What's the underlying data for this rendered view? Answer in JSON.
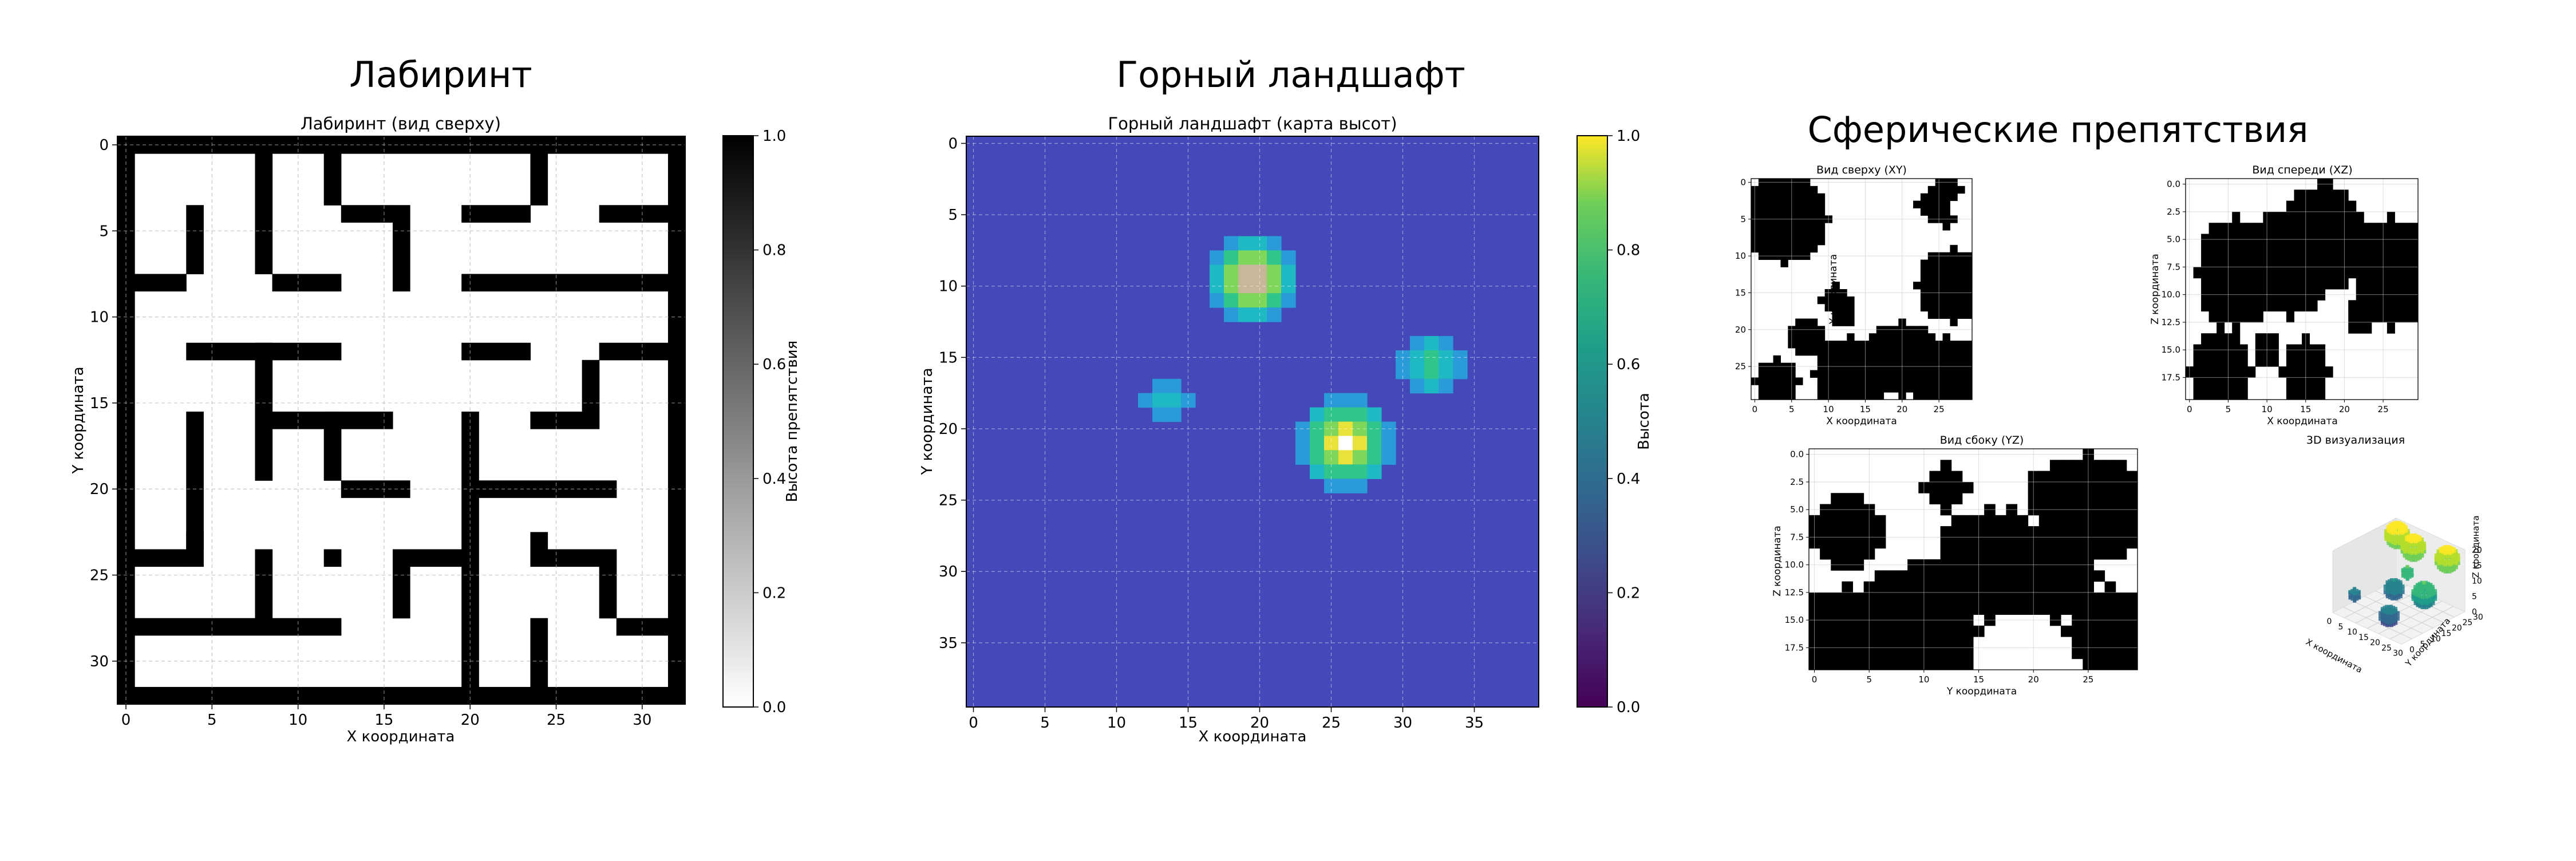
{
  "panels": {
    "maze": {
      "suptitle": "Лабиринт",
      "chart_data": {
        "type": "heatmap",
        "title": "Лабиринт (вид сверху)",
        "xlabel": "X координата",
        "ylabel": "Y координата",
        "xticks": [
          0,
          5,
          10,
          15,
          20,
          25,
          30
        ],
        "yticks": [
          0,
          5,
          10,
          15,
          20,
          25,
          30
        ],
        "xlim": [
          -0.5,
          32.5
        ],
        "ylim": [
          -0.5,
          32.5
        ],
        "colormap": "gray_r",
        "colorbar": {
          "label": "Высота препятствия",
          "ticks": [
            "0.0",
            "0.2",
            "0.4",
            "0.6",
            "0.8",
            "1.0"
          ]
        },
        "grid": true,
        "wall_cells": [
          [
            0,
            0,
            32,
            0
          ],
          [
            0,
            32,
            32,
            32
          ],
          [
            0,
            0,
            0,
            32
          ],
          [
            32,
            0,
            32,
            32
          ],
          [
            12,
            1,
            12,
            3
          ],
          [
            24,
            1,
            24,
            3
          ],
          [
            13,
            4,
            15,
            4
          ],
          [
            20,
            4,
            23,
            4
          ],
          [
            28,
            4,
            31,
            4
          ],
          [
            4,
            4,
            4,
            7
          ],
          [
            8,
            1,
            8,
            7
          ],
          [
            16,
            4,
            16,
            8
          ],
          [
            1,
            8,
            3,
            8
          ],
          [
            9,
            8,
            12,
            8
          ],
          [
            20,
            8,
            31,
            8
          ],
          [
            4,
            12,
            12,
            12
          ],
          [
            20,
            12,
            23,
            12
          ],
          [
            28,
            12,
            31,
            12
          ],
          [
            8,
            12,
            8,
            19
          ],
          [
            27,
            13,
            27,
            15
          ],
          [
            9,
            16,
            15,
            16
          ],
          [
            24,
            16,
            27,
            16
          ],
          [
            4,
            16,
            4,
            23
          ],
          [
            12,
            16,
            12,
            19
          ],
          [
            20,
            16,
            20,
            31
          ],
          [
            13,
            20,
            16,
            20
          ],
          [
            21,
            20,
            28,
            20
          ],
          [
            24,
            23,
            24,
            24
          ],
          [
            1,
            24,
            3,
            24
          ],
          [
            4,
            23,
            4,
            24
          ],
          [
            12,
            24,
            12,
            24
          ],
          [
            17,
            24,
            19,
            24
          ],
          [
            25,
            24,
            28,
            24
          ],
          [
            8,
            24,
            8,
            27
          ],
          [
            16,
            24,
            16,
            27
          ],
          [
            28,
            25,
            28,
            27
          ],
          [
            1,
            28,
            12,
            28
          ],
          [
            29,
            28,
            31,
            28
          ],
          [
            24,
            28,
            24,
            31
          ]
        ]
      }
    },
    "mountain": {
      "suptitle": "Горный ландшафт",
      "chart_data": {
        "type": "heatmap",
        "title": "Горный ландшафт (карта высот)",
        "xlabel": "X координата",
        "ylabel": "Y координата",
        "xticks": [
          0,
          5,
          10,
          15,
          20,
          25,
          30,
          35
        ],
        "yticks": [
          0,
          5,
          10,
          15,
          20,
          25,
          30,
          35
        ],
        "xlim": [
          -0.5,
          39.5
        ],
        "ylim": [
          -0.5,
          39.5
        ],
        "colormap": "viridis",
        "base_color": "#4548b8",
        "colorbar": {
          "label": "Высота",
          "ticks": [
            "0.0",
            "0.2",
            "0.4",
            "0.6",
            "0.8",
            "1.0"
          ]
        },
        "grid": true,
        "peaks": [
          {
            "x": 19.5,
            "y": 9.5,
            "radius": 3.5,
            "height": 1.0
          },
          {
            "x": 26,
            "y": 21,
            "radius": 3.5,
            "height": 1.0
          },
          {
            "x": 32,
            "y": 15.5,
            "radius": 2.3,
            "height": 0.65
          },
          {
            "x": 13.5,
            "y": 18,
            "radius": 1.5,
            "height": 0.5
          }
        ]
      }
    },
    "spheres": {
      "suptitle": "Сферические препятствия",
      "views": [
        {
          "chart_data": {
            "type": "heatmap",
            "title": "Вид сверху (XY)",
            "xlabel": "X координата",
            "ylabel": "Y координата",
            "xticks": [
              "0",
              "5",
              "10",
              "15",
              "20",
              "25"
            ],
            "yticks": [
              "0",
              "5",
              "10",
              "15",
              "20",
              "25"
            ],
            "xlim": [
              -0.5,
              29.5
            ],
            "ylim": [
              -0.5,
              29.5
            ],
            "blobs": [
              [
                4,
                5,
                6
              ],
              [
                11,
                16,
                2
              ],
              [
                13,
                26,
                5
              ],
              [
                20,
                24,
                5
              ],
              [
                27,
                14,
                5
              ],
              [
                26,
                26,
                5
              ],
              [
                26,
                1,
                2
              ],
              [
                24,
                3,
                2
              ],
              [
                26,
                5,
                1
              ],
              [
                12,
                18,
                1.5
              ],
              [
                3,
                27,
                3
              ],
              [
                7,
                21,
                2.5
              ]
            ]
          }
        },
        {
          "chart_data": {
            "type": "heatmap",
            "title": "Вид спереди (XZ)",
            "xlabel": "X координата",
            "ylabel": "Z координата",
            "xticks": [
              "0",
              "5",
              "10",
              "15",
              "20",
              "25"
            ],
            "yticks": [
              "0.0",
              "2.5",
              "5.0",
              "7.5",
              "10.0",
              "12.5",
              "15.0",
              "17.5"
            ],
            "xlim": [
              -0.5,
              29.5
            ],
            "ylim": [
              -0.5,
              19.5
            ],
            "blobs": [
              [
                6,
                8,
                5
              ],
              [
                13,
                7,
                5
              ],
              [
                17,
                5,
                5
              ],
              [
                26,
                8,
                5
              ],
              [
                4,
                17,
                4
              ],
              [
                15,
                17,
                3
              ],
              [
                18,
                2,
                2
              ],
              [
                10,
                15,
                1.5
              ],
              [
                22,
                12,
                1.5
              ],
              [
                20,
                5,
                3
              ]
            ]
          }
        },
        {
          "chart_data": {
            "type": "heatmap",
            "title": "Вид сбоку (YZ)",
            "xlabel": "Y координата",
            "ylabel": "Z координата",
            "xticks": [
              "0",
              "5",
              "10",
              "15",
              "20",
              "25"
            ],
            "yticks": [
              "0.0",
              "2.5",
              "5.0",
              "7.5",
              "10.0",
              "12.5",
              "15.0",
              "17.5"
            ],
            "xlim": [
              -0.5,
              29.5
            ],
            "ylim": [
              -0.5,
              19.5
            ],
            "blobs": [
              [
                3,
                7,
                3.5
              ],
              [
                12,
                3,
                2
              ],
              [
                21,
                3,
                1.5
              ],
              [
                25,
                5,
                5
              ],
              [
                22,
                11,
                4
              ],
              [
                16,
                10,
                5
              ],
              [
                12,
                12,
                3
              ],
              [
                9,
                16,
                6
              ],
              [
                3,
                17,
                5
              ],
              [
                27,
                16,
                4
              ],
              [
                18,
                7,
                2
              ]
            ]
          }
        },
        {
          "chart_data": {
            "type": "scatter3d",
            "title": "3D визуализация",
            "xlabel": "X координата",
            "ylabel": "Y координата",
            "zlabel": "Z координата",
            "xticks": [
              "0",
              "5",
              "10",
              "15",
              "20",
              "25",
              "30"
            ],
            "yticks": [
              "0",
              "5",
              "10",
              "15",
              "20",
              "25",
              "30"
            ],
            "zticks": [
              "0",
              "5",
              "10",
              "15",
              "20"
            ],
            "spheres": [
              [
                5,
                25,
                18,
                4
              ],
              [
                13,
                24,
                17,
                4
              ],
              [
                26,
                26,
                17,
                4
              ],
              [
                27,
                14,
                10,
                4
              ],
              [
                12,
                16,
                6,
                3
              ],
              [
                20,
                5,
                4,
                3
              ],
              [
                4,
                6,
                5,
                2
              ],
              [
                16,
                18,
                12,
                2
              ]
            ]
          }
        }
      ]
    }
  }
}
